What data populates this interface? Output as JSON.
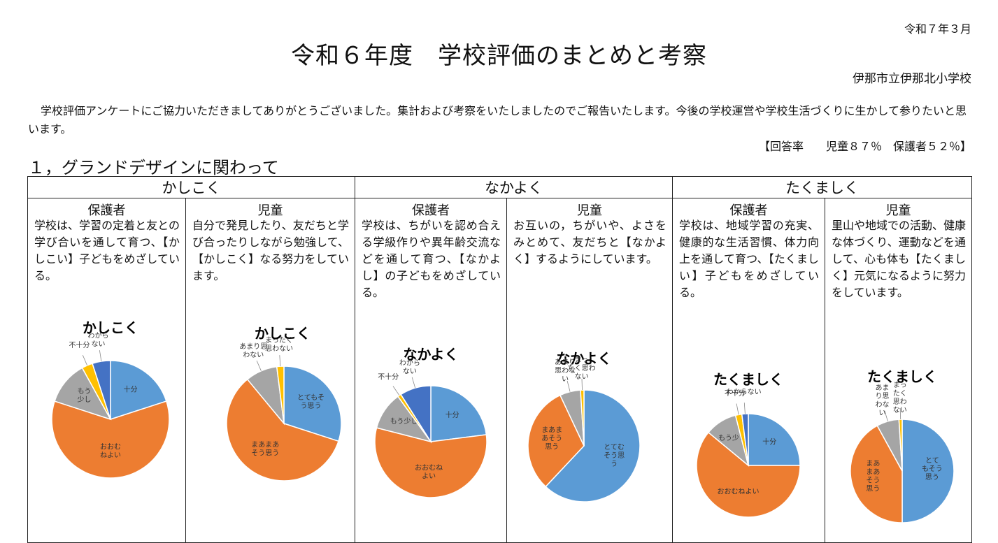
{
  "header": {
    "date": "令和７年３月",
    "title": "令和６年度　学校評価のまとめと考察",
    "school": "伊那市立伊那北小学校",
    "intro": "学校評価アンケートにご協力いただきましてありがとうございました。集計および考察をいたしましたのでご報告いたします。今後の学校運営や学校生活づくりに生かして参りたいと思います。",
    "response_rate": "【回答率　　児童８７％　保護者５２％】",
    "section_title": "１，グランドデザインに関わって"
  },
  "categories": [
    "かしこく",
    "なかよく",
    "たくましく"
  ],
  "columns": [
    {
      "who": "保護者",
      "desc": "学校は、学習の定着と友との学び合いを通して育つ、【かしこい】子どもをめざしている。"
    },
    {
      "who": "児童",
      "desc": "自分で発見したり、友だちと学び合ったりしながら勉強して、【かしこく】なる努力をしています。"
    },
    {
      "who": "保護者",
      "desc": "学校は、ちがいを認め合える学級作りや異年齢交流などを通して育つ、【なかよし】の子どもをめざしている。"
    },
    {
      "who": "児童",
      "desc": "お互いの，ちがいや、よさをみとめて、友だちと【なかよく】するようにしています。"
    },
    {
      "who": "保護者",
      "desc": "学校は、地域学習の充実、健康的な生活習慣、体力向上を通して育つ、【たくましい】子どもをめざしている。"
    },
    {
      "who": "児童",
      "desc": "里山や地域での活動、健康な体づくり、運動などを通して、心も体も【たくましく】元気になるように努力をしています。"
    }
  ],
  "colors": {
    "blue": "#5b9bd5",
    "orange": "#ed7d31",
    "gray": "#a5a5a5",
    "yellow": "#ffc000",
    "navy": "#4472c4"
  },
  "chart_data": [
    {
      "type": "pie",
      "title": "かしこく",
      "series": [
        {
          "name": "十分",
          "value": 20,
          "color": "#5b9bd5",
          "label": [
            "十分"
          ]
        },
        {
          "name": "おおむねよい",
          "value": 60,
          "color": "#ed7d31",
          "label": [
            "おおむ",
            "ねよい"
          ]
        },
        {
          "name": "もう少し",
          "value": 12,
          "color": "#a5a5a5",
          "label": [
            "もう",
            "少し"
          ]
        },
        {
          "name": "不十分",
          "value": 3,
          "color": "#ffc000",
          "label": [
            "不十分"
          ]
        },
        {
          "name": "わからない",
          "value": 5,
          "color": "#4472c4",
          "label": [
            "わから",
            "ない"
          ]
        }
      ]
    },
    {
      "type": "pie",
      "title": "かしこく",
      "series": [
        {
          "name": "とてもそう思う",
          "value": 30,
          "color": "#5b9bd5",
          "label": [
            "とてもそ",
            "う思う"
          ]
        },
        {
          "name": "まあまあそう思う",
          "value": 59,
          "color": "#ed7d31",
          "label": [
            "まあまあ",
            "そう思う"
          ]
        },
        {
          "name": "あまり思わない",
          "value": 9,
          "color": "#a5a5a5",
          "label": [
            "あまり思",
            "わない"
          ]
        },
        {
          "name": "まったく思わない",
          "value": 2,
          "color": "#ffc000",
          "label": [
            "まったく",
            "思わない"
          ]
        }
      ]
    },
    {
      "type": "pie",
      "title": "なかよく",
      "series": [
        {
          "name": "十分",
          "value": 23,
          "color": "#5b9bd5",
          "label": [
            "十分"
          ]
        },
        {
          "name": "おおむねよい",
          "value": 56,
          "color": "#ed7d31",
          "label": [
            "おおむね",
            "よい"
          ]
        },
        {
          "name": "もう少し",
          "value": 11,
          "color": "#a5a5a5",
          "label": [
            "もう少し"
          ]
        },
        {
          "name": "不十分",
          "value": 1,
          "color": "#ffc000",
          "label": [
            "不十分"
          ]
        },
        {
          "name": "わからない",
          "value": 9,
          "color": "#4472c4",
          "label": [
            "わから",
            "ない"
          ]
        }
      ]
    },
    {
      "type": "pie",
      "title": "なかよく",
      "series": [
        {
          "name": "とてもそう思う",
          "value": 62,
          "color": "#5b9bd5",
          "label": [
            "とてむ",
            "そう思",
            "う"
          ]
        },
        {
          "name": "まあまあそう思う",
          "value": 31,
          "color": "#ed7d31",
          "label": [
            "まあま",
            "あそう",
            "思う"
          ]
        },
        {
          "name": "あまり思わない",
          "value": 6,
          "color": "#a5a5a5",
          "label": [
            "あまり",
            "思わな",
            "い"
          ]
        },
        {
          "name": "まったく思わない",
          "value": 1,
          "color": "#ffc000",
          "label": [
            "まっ",
            "たく思わ",
            "ない"
          ]
        }
      ]
    },
    {
      "type": "pie",
      "title": "たくましく",
      "series": [
        {
          "name": "十分",
          "value": 25,
          "color": "#5b9bd5",
          "label": [
            "十分"
          ]
        },
        {
          "name": "おおむねよい",
          "value": 61,
          "color": "#ed7d31",
          "label": [
            "おおむねよい"
          ]
        },
        {
          "name": "もう少し",
          "value": 10,
          "color": "#a5a5a5",
          "label": [
            "もう少し"
          ]
        },
        {
          "name": "不十分",
          "value": 2,
          "color": "#ffc000",
          "label": [
            "不十分"
          ]
        },
        {
          "name": "わからない",
          "value": 2,
          "color": "#4472c4",
          "label": [
            "わからない"
          ]
        }
      ]
    },
    {
      "type": "pie",
      "title": "たくましく",
      "series": [
        {
          "name": "とてもそう思う",
          "value": 50,
          "color": "#5b9bd5",
          "label": [
            "とて",
            "もそう",
            "思う"
          ]
        },
        {
          "name": "まあまあそう思う",
          "value": 42,
          "color": "#ed7d31",
          "label": [
            "まあ",
            "まあ",
            "そう",
            "思う"
          ]
        },
        {
          "name": "あまり思わない",
          "value": 7,
          "color": "#a5a5a5",
          "label": [
            "あま",
            "り思",
            "わな",
            "い"
          ]
        },
        {
          "name": "まったく思わない",
          "value": 1,
          "color": "#ffc000",
          "label": [
            "まっ",
            "たく",
            "思わ",
            "ない"
          ]
        }
      ]
    }
  ]
}
